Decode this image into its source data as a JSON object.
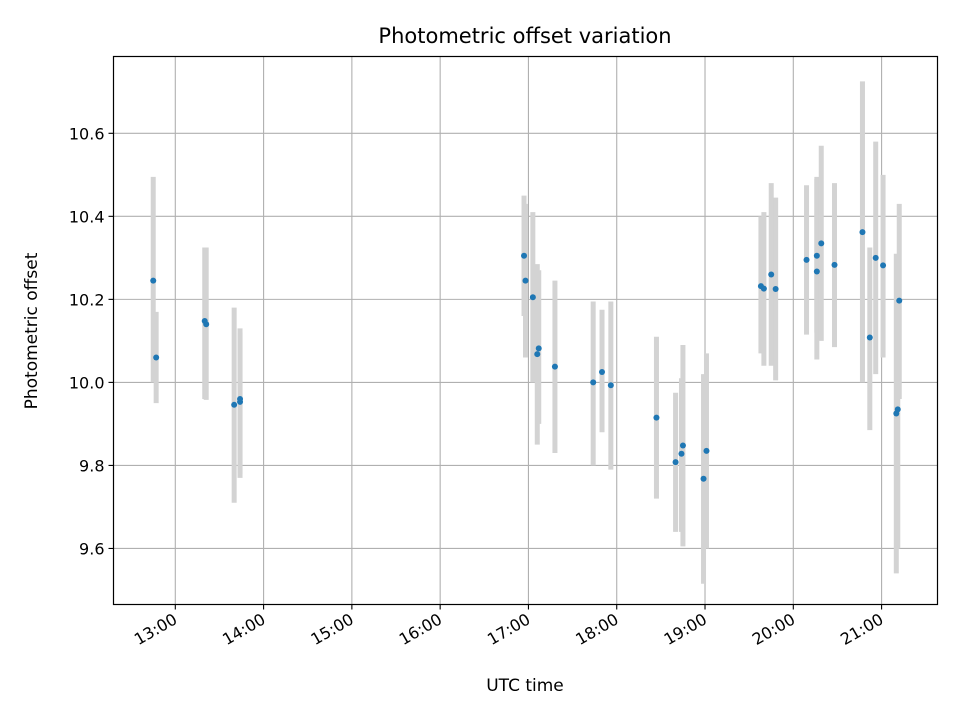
{
  "chart_data": {
    "type": "scatter",
    "title": "Photometric offset variation",
    "xlabel": "UTC time",
    "ylabel": "Photometric offset",
    "xlim": [
      "12:18",
      "21:38"
    ],
    "ylim": [
      9.465,
      10.785
    ],
    "grid": true,
    "x_ticks": [
      "13:00",
      "14:00",
      "15:00",
      "16:00",
      "17:00",
      "18:00",
      "19:00",
      "20:00",
      "21:00"
    ],
    "y_ticks": [
      9.6,
      9.8,
      10.0,
      10.2,
      10.4,
      10.6
    ],
    "y_tick_labels": [
      "9.6",
      "9.8",
      "10.0",
      "10.2",
      "10.4",
      "10.6"
    ],
    "colors": {
      "points": "#1f77b4",
      "errorbars": "#d3d3d3",
      "grid": "#b0b0b0"
    },
    "points": [
      {
        "x": "12:45",
        "y": 10.245,
        "ylo": 10.0,
        "yhi": 10.495
      },
      {
        "x": "12:47",
        "y": 10.06,
        "ylo": 9.95,
        "yhi": 10.17
      },
      {
        "x": "13:20",
        "y": 10.148,
        "ylo": 9.96,
        "yhi": 10.325
      },
      {
        "x": "13:21",
        "y": 10.14,
        "ylo": 9.958,
        "yhi": 10.325
      },
      {
        "x": "13:40",
        "y": 9.946,
        "ylo": 9.71,
        "yhi": 10.18
      },
      {
        "x": "13:44",
        "y": 9.953,
        "ylo": 9.78,
        "yhi": 10.12
      },
      {
        "x": "13:44",
        "y": 9.96,
        "ylo": 9.77,
        "yhi": 10.13
      },
      {
        "x": "16:57",
        "y": 10.305,
        "ylo": 10.16,
        "yhi": 10.45
      },
      {
        "x": "16:58",
        "y": 10.245,
        "ylo": 10.06,
        "yhi": 10.43
      },
      {
        "x": "17:03",
        "y": 10.205,
        "ylo": 10.0,
        "yhi": 10.41
      },
      {
        "x": "17:06",
        "y": 10.068,
        "ylo": 9.85,
        "yhi": 10.285
      },
      {
        "x": "17:07",
        "y": 10.082,
        "ylo": 9.9,
        "yhi": 10.27
      },
      {
        "x": "17:18",
        "y": 10.038,
        "ylo": 9.83,
        "yhi": 10.245
      },
      {
        "x": "17:44",
        "y": 10.0,
        "ylo": 9.8,
        "yhi": 10.195
      },
      {
        "x": "17:50",
        "y": 10.025,
        "ylo": 9.88,
        "yhi": 10.175
      },
      {
        "x": "17:56",
        "y": 9.993,
        "ylo": 9.79,
        "yhi": 10.195
      },
      {
        "x": "18:27",
        "y": 9.915,
        "ylo": 9.72,
        "yhi": 10.11
      },
      {
        "x": "18:40",
        "y": 9.808,
        "ylo": 9.64,
        "yhi": 9.975
      },
      {
        "x": "18:44",
        "y": 9.828,
        "ylo": 9.64,
        "yhi": 10.01
      },
      {
        "x": "18:45",
        "y": 9.848,
        "ylo": 9.605,
        "yhi": 10.09
      },
      {
        "x": "18:59",
        "y": 9.768,
        "ylo": 9.515,
        "yhi": 10.02
      },
      {
        "x": "19:01",
        "y": 9.835,
        "ylo": 9.6,
        "yhi": 10.07
      },
      {
        "x": "19:38",
        "y": 10.232,
        "ylo": 10.07,
        "yhi": 10.4
      },
      {
        "x": "19:40",
        "y": 10.226,
        "ylo": 10.04,
        "yhi": 10.41
      },
      {
        "x": "19:45",
        "y": 10.26,
        "ylo": 10.04,
        "yhi": 10.48
      },
      {
        "x": "19:48",
        "y": 10.225,
        "ylo": 10.005,
        "yhi": 10.445
      },
      {
        "x": "20:09",
        "y": 10.295,
        "ylo": 10.115,
        "yhi": 10.475
      },
      {
        "x": "20:16",
        "y": 10.305,
        "ylo": 10.12,
        "yhi": 10.49
      },
      {
        "x": "20:16",
        "y": 10.267,
        "ylo": 10.055,
        "yhi": 10.495
      },
      {
        "x": "20:19",
        "y": 10.335,
        "ylo": 10.1,
        "yhi": 10.57
      },
      {
        "x": "20:28",
        "y": 10.283,
        "ylo": 10.085,
        "yhi": 10.48
      },
      {
        "x": "20:47",
        "y": 10.362,
        "ylo": 10.0,
        "yhi": 10.725
      },
      {
        "x": "20:52",
        "y": 10.108,
        "ylo": 9.885,
        "yhi": 10.325
      },
      {
        "x": "20:56",
        "y": 10.3,
        "ylo": 10.02,
        "yhi": 10.58
      },
      {
        "x": "21:01",
        "y": 10.282,
        "ylo": 10.06,
        "yhi": 10.5
      },
      {
        "x": "21:10",
        "y": 9.925,
        "ylo": 9.54,
        "yhi": 10.31
      },
      {
        "x": "21:11",
        "y": 9.935,
        "ylo": 9.6,
        "yhi": 10.27
      },
      {
        "x": "21:12",
        "y": 10.197,
        "ylo": 9.96,
        "yhi": 10.43
      }
    ]
  }
}
